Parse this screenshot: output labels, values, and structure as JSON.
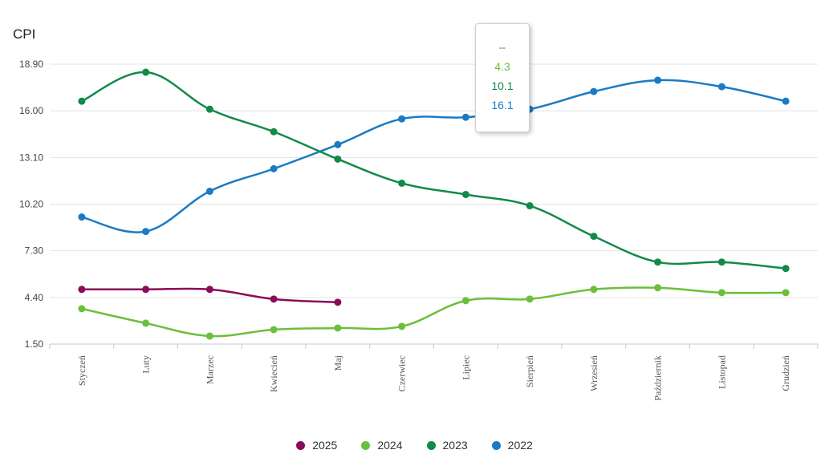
{
  "chart_data": {
    "type": "line",
    "ylabel": "CPI",
    "ylim": [
      1.5,
      18.9
    ],
    "yticks": [
      "18.90",
      "16.00",
      "13.10",
      "10.20",
      "7.30",
      "4.40",
      "1.50"
    ],
    "categories": [
      "Styczeń",
      "Luty",
      "Marzec",
      "Kwiecień",
      "Maj",
      "Czerwiec",
      "Lipiec",
      "Sierpień",
      "Wrzesień",
      "Październik",
      "Listopad",
      "Grudzień"
    ],
    "series": [
      {
        "name": "2025",
        "color": "#8a0b5a",
        "values": [
          4.9,
          4.9,
          4.9,
          4.3,
          4.1,
          null,
          null,
          null,
          null,
          null,
          null,
          null
        ]
      },
      {
        "name": "2024",
        "color": "#6cbf3a",
        "values": [
          3.7,
          2.8,
          2.0,
          2.4,
          2.5,
          2.6,
          4.2,
          4.3,
          4.9,
          5.0,
          4.7,
          4.7
        ]
      },
      {
        "name": "2023",
        "color": "#138a48",
        "values": [
          16.6,
          18.4,
          16.1,
          14.7,
          13.0,
          11.5,
          10.8,
          10.1,
          8.2,
          6.6,
          6.6,
          6.2
        ]
      },
      {
        "name": "2022",
        "color": "#1a7bc4",
        "values": [
          9.4,
          8.5,
          11.0,
          12.4,
          13.9,
          15.5,
          15.6,
          16.1,
          17.2,
          17.9,
          17.5,
          16.6
        ]
      }
    ],
    "grid": true,
    "legend_position": "bottom-center"
  },
  "tooltip": {
    "header": "--",
    "lines": [
      {
        "value": "4.3",
        "color": "#6cbf3a"
      },
      {
        "value": "10.1",
        "color": "#138a48"
      },
      {
        "value": "16.1",
        "color": "#1a7bc4"
      }
    ]
  }
}
